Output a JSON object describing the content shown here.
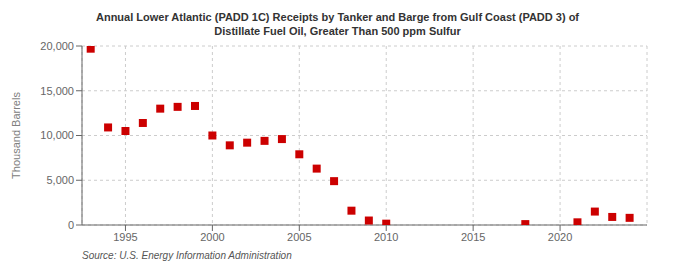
{
  "chart_data": {
    "type": "scatter",
    "title": "Annual Lower Atlantic (PADD 1C) Receipts by Tanker and Barge from Gulf Coast (PADD 3) of\nDistillate Fuel Oil, Greater Than 500 ppm Sulfur",
    "ylabel": "Thousand Barrels",
    "annotations": [
      "Source: U.S. Energy Information Administration"
    ],
    "x": [
      1993,
      1994,
      1995,
      1996,
      1997,
      1998,
      1999,
      2000,
      2001,
      2002,
      2003,
      2004,
      2005,
      2006,
      2007,
      2008,
      2009,
      2010,
      2018,
      2021,
      2022,
      2023,
      2024
    ],
    "values": [
      19700,
      10900,
      10500,
      11400,
      13000,
      13200,
      13300,
      10000,
      8900,
      9200,
      9400,
      9600,
      7900,
      6300,
      4900,
      1600,
      500,
      150,
      100,
      300,
      1500,
      900,
      800
    ],
    "color": "#cc0000",
    "marker": "square",
    "xlim": [
      1992.5,
      2025
    ],
    "ylim": [
      0,
      20000
    ],
    "xticks": [
      1995,
      2000,
      2005,
      2010,
      2015,
      2020
    ],
    "yticks": [
      0,
      {
        "value": 5000,
        "label": "5,000"
      },
      {
        "value": 10000,
        "label": "10,000"
      },
      {
        "value": 15000,
        "label": "15,000"
      },
      {
        "value": 20000,
        "label": "20,000"
      }
    ],
    "grid": true
  }
}
